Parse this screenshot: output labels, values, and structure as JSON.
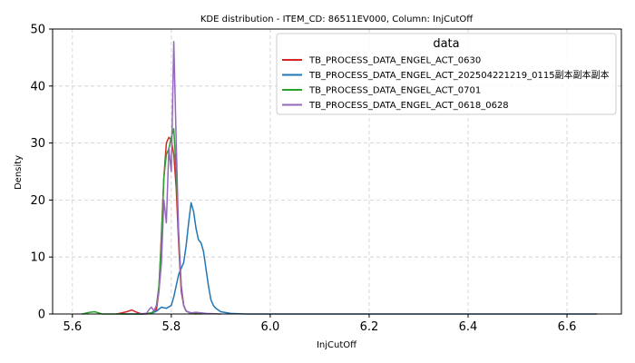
{
  "chart_data": {
    "type": "line",
    "title": "KDE distribution - ITEM_CD: 86511EV000, Column: InjCutOff",
    "xlabel": "InjCutOff",
    "ylabel": "Density",
    "xlim": [
      5.56,
      6.71
    ],
    "ylim": [
      0,
      50
    ],
    "xticks": [
      5.6,
      5.8,
      6.0,
      6.2,
      6.4,
      6.6
    ],
    "xtick_labels": [
      "5.6",
      "5.8",
      "6.0",
      "6.2",
      "6.4",
      "6.6"
    ],
    "yticks": [
      0,
      10,
      20,
      30,
      40,
      50
    ],
    "ytick_labels": [
      "0",
      "10",
      "20",
      "30",
      "40",
      "50"
    ],
    "grid": true,
    "legend": {
      "title": "data",
      "placement": "top-right"
    },
    "series": [
      {
        "name": "TB_PROCESS_DATA_ENGEL_ACT_0630",
        "color": "#d62728",
        "x": [
          5.69,
          5.7,
          5.71,
          5.72,
          5.73,
          5.74,
          5.75,
          5.76,
          5.77,
          5.775,
          5.78,
          5.785,
          5.79,
          5.795,
          5.8,
          5.805,
          5.81,
          5.815,
          5.82,
          5.825,
          5.83,
          5.84,
          5.85
        ],
        "y": [
          0,
          0.2,
          0.4,
          0.7,
          0.3,
          0,
          0,
          0.2,
          0.8,
          4,
          14,
          24,
          30,
          31,
          30.5,
          28,
          22,
          12,
          4,
          1.5,
          0.5,
          0.1,
          0
        ]
      },
      {
        "name": "TB_PROCESS_DATA_ENGEL_ACT_202504221219_0115副本副本副本",
        "color": "#1f77b4",
        "x": [
          5.7,
          5.74,
          5.76,
          5.77,
          5.78,
          5.79,
          5.8,
          5.805,
          5.81,
          5.815,
          5.82,
          5.825,
          5.83,
          5.835,
          5.84,
          5.845,
          5.85,
          5.855,
          5.86,
          5.865,
          5.87,
          5.875,
          5.88,
          5.885,
          5.89,
          5.9,
          5.92,
          5.95,
          6.0,
          6.66
        ],
        "y": [
          0,
          0,
          0.1,
          0.5,
          1.2,
          1.0,
          1.5,
          3,
          5,
          7,
          8,
          9,
          12,
          16,
          19.5,
          18,
          15,
          13,
          12.5,
          11,
          8,
          5,
          2.5,
          1.5,
          1.0,
          0.4,
          0.1,
          0,
          0,
          0
        ]
      },
      {
        "name": "TB_PROCESS_DATA_ENGEL_ACT_0701",
        "color": "#2ca02c",
        "x": [
          5.62,
          5.635,
          5.645,
          5.66,
          5.74,
          5.76,
          5.765,
          5.77,
          5.775,
          5.78,
          5.785,
          5.79,
          5.795,
          5.8,
          5.805,
          5.81,
          5.815,
          5.82,
          5.825,
          5.83,
          5.84,
          5.86
        ],
        "y": [
          0,
          0.3,
          0.4,
          0,
          0,
          0.2,
          0.5,
          1.5,
          5,
          13,
          24,
          28,
          29,
          31,
          32.5,
          25,
          14,
          5,
          1.5,
          0.5,
          0.1,
          0
        ]
      },
      {
        "name": "TB_PROCESS_DATA_ENGEL_ACT_0618_0628",
        "color": "#9467bd",
        "x": [
          5.73,
          5.75,
          5.755,
          5.76,
          5.765,
          5.77,
          5.775,
          5.78,
          5.785,
          5.79,
          5.795,
          5.8,
          5.805,
          5.81,
          5.815,
          5.82,
          5.825,
          5.83,
          5.84,
          5.85,
          5.87,
          5.9
        ],
        "y": [
          0,
          0.1,
          0.8,
          1.2,
          0.5,
          1.5,
          4,
          9,
          20,
          16,
          29,
          25,
          47.8,
          30,
          13,
          5,
          1.5,
          0.5,
          0.2,
          0.3,
          0.1,
          0
        ]
      }
    ]
  }
}
